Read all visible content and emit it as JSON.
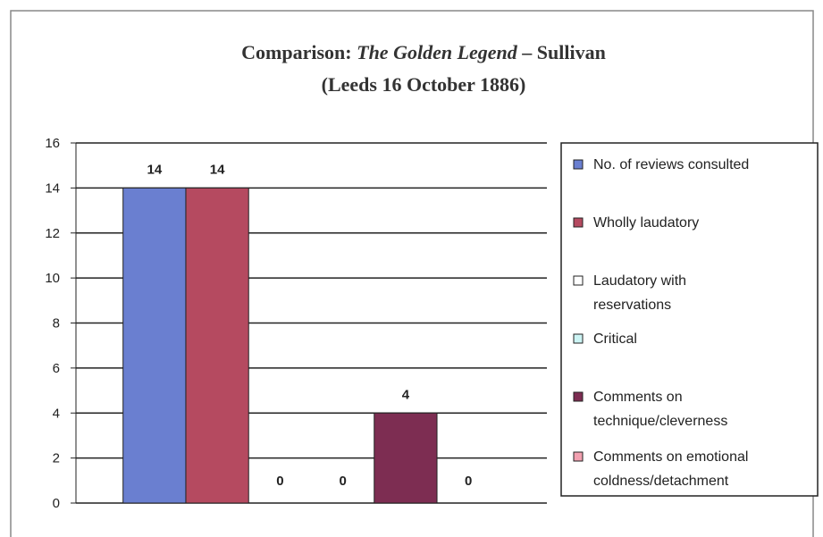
{
  "chart_data": {
    "type": "bar",
    "title": "Comparison: The Golden Legend – Sullivan",
    "title_italic": "The Golden Legend",
    "subtitle": "(Leeds 16 October 1886)",
    "categories": [
      null
    ],
    "series": [
      {
        "name": "No. of reviews consulted",
        "color": "#6a7fd0",
        "values": [
          14
        ]
      },
      {
        "name": "Wholly laudatory",
        "color": "#b54a60",
        "values": [
          14
        ]
      },
      {
        "name": "Laudatory with reservations",
        "color": "#ffffff",
        "values": [
          0
        ]
      },
      {
        "name": "Critical",
        "color": "#ccf4f4",
        "values": [
          0
        ]
      },
      {
        "name": "Comments on technique/cleverness",
        "color": "#7d2d52",
        "values": [
          4
        ]
      },
      {
        "name": "Comments on emotional coldness/detachment",
        "color": "#f2a0b0",
        "values": [
          0
        ]
      }
    ],
    "ylim": [
      0,
      16
    ],
    "yticks": [
      0,
      2,
      4,
      6,
      8,
      10,
      12,
      14,
      16
    ],
    "grid": true,
    "legend": "right"
  }
}
